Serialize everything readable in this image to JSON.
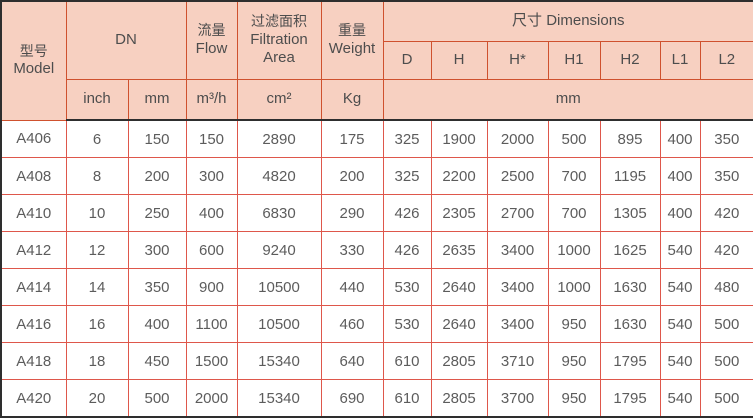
{
  "table": {
    "header": {
      "model": {
        "zh": "型号",
        "en": "Model"
      },
      "dn": "DN",
      "flow": {
        "zh": "流量",
        "en": "Flow"
      },
      "filtration": {
        "zh": "过滤面积",
        "en1": "Filtration",
        "en2": "Area"
      },
      "weight": {
        "zh": "重量",
        "en": "Weight"
      },
      "dimensions": {
        "zh": "尺寸",
        "en": "Dimensions"
      },
      "dim_cols": [
        "D",
        "H",
        "H*",
        "H1",
        "H2",
        "L1",
        "L2"
      ],
      "units": {
        "inch": "inch",
        "mm": "mm",
        "flow": "m³/h",
        "area": "cm²",
        "weight": "Kg",
        "dims": "mm"
      }
    },
    "rows": [
      [
        "A406",
        "6",
        "150",
        "150",
        "2890",
        "175",
        "325",
        "1900",
        "2000",
        "500",
        "895",
        "400",
        "350"
      ],
      [
        "A408",
        "8",
        "200",
        "300",
        "4820",
        "200",
        "325",
        "2200",
        "2500",
        "700",
        "1195",
        "400",
        "350"
      ],
      [
        "A410",
        "10",
        "250",
        "400",
        "6830",
        "290",
        "426",
        "2305",
        "2700",
        "700",
        "1305",
        "400",
        "420"
      ],
      [
        "A412",
        "12",
        "300",
        "600",
        "9240",
        "330",
        "426",
        "2635",
        "3400",
        "1000",
        "1625",
        "540",
        "420"
      ],
      [
        "A414",
        "14",
        "350",
        "900",
        "10500",
        "440",
        "530",
        "2640",
        "3400",
        "1000",
        "1630",
        "540",
        "480"
      ],
      [
        "A416",
        "16",
        "400",
        "1100",
        "10500",
        "460",
        "530",
        "2640",
        "3400",
        "950",
        "1630",
        "540",
        "500"
      ],
      [
        "A418",
        "18",
        "450",
        "1500",
        "15340",
        "640",
        "610",
        "2805",
        "3710",
        "950",
        "1795",
        "540",
        "500"
      ],
      [
        "A420",
        "20",
        "500",
        "2000",
        "15340",
        "690",
        "610",
        "2805",
        "3700",
        "950",
        "1795",
        "540",
        "500"
      ]
    ]
  },
  "colors": {
    "header_bg": "#f7d0c1",
    "header_grid": "#cf512e",
    "body_grid": "#de574b",
    "outer_border": "#2e2e2e",
    "header_text": "#4d4d4d",
    "body_text": "#5c5c5c",
    "body_bg": "#ffffff"
  }
}
